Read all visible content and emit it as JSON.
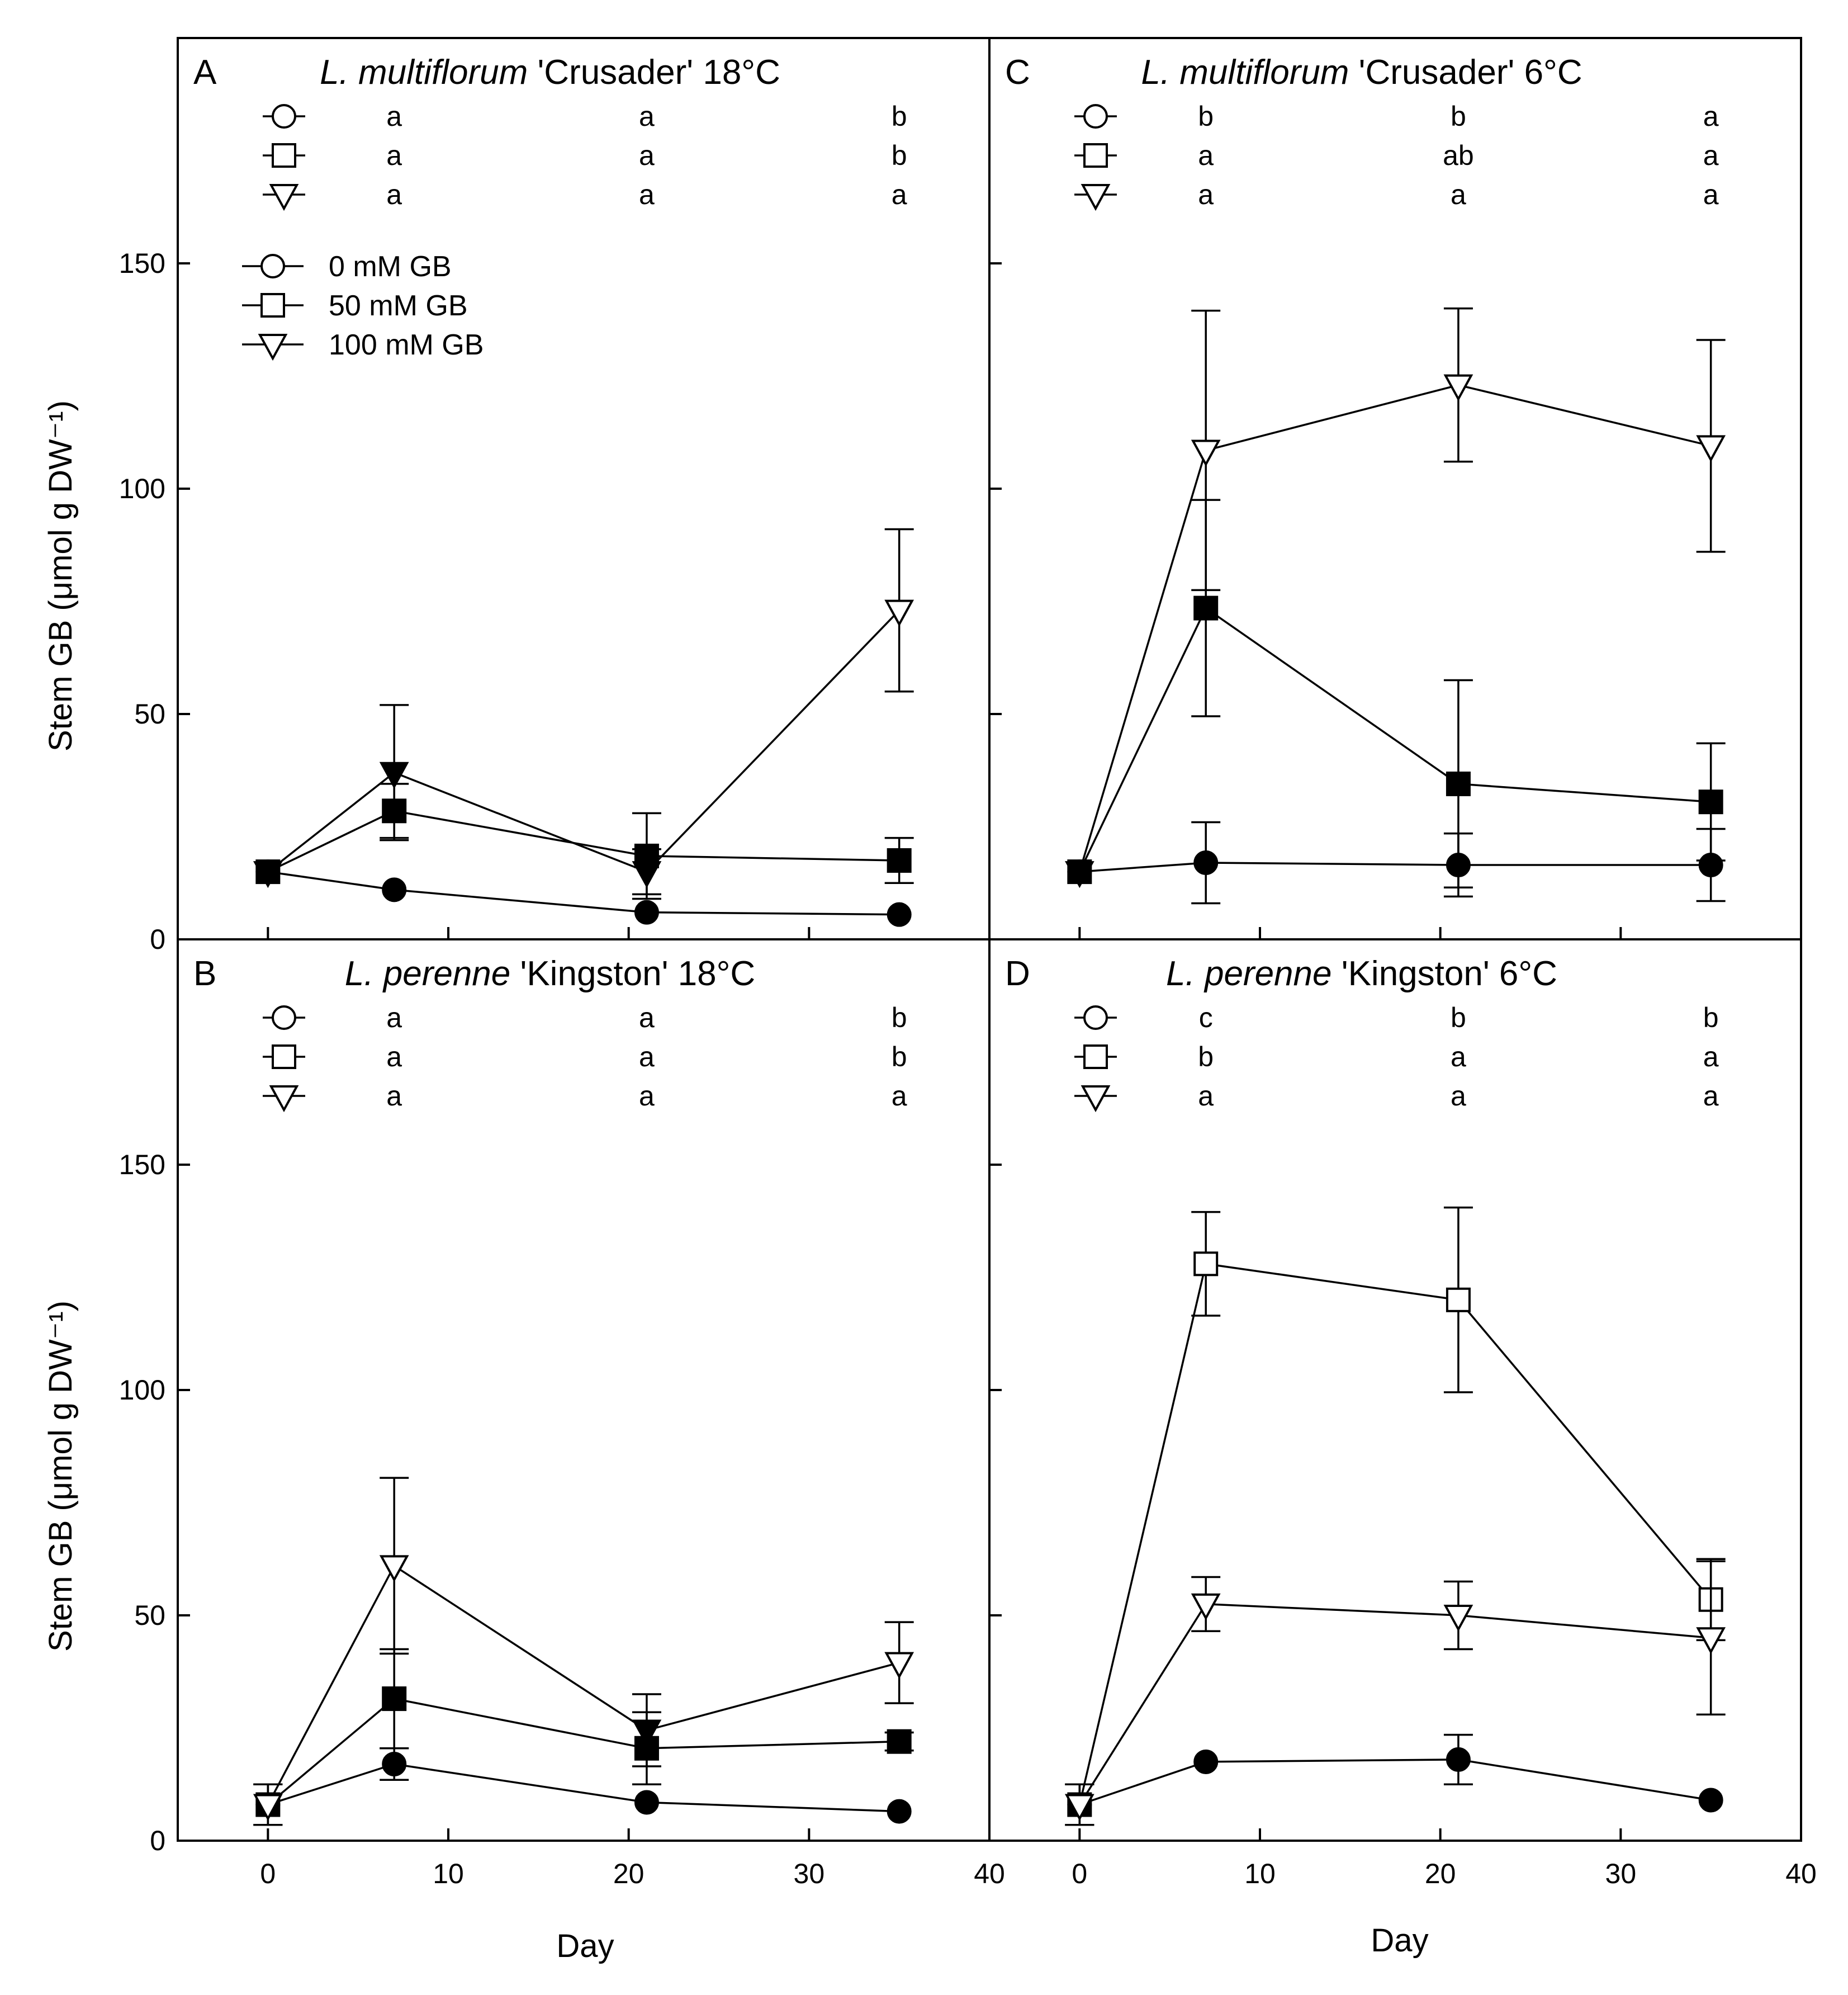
{
  "chart_data": {
    "type": "line",
    "shared": {
      "xlabel": "Day",
      "ylabel": "Stem GB (μmol g DW⁻¹)",
      "x_ticks": [
        0,
        10,
        20,
        30,
        40
      ],
      "y_ticks": [
        0,
        50,
        100,
        150
      ],
      "xlim": [
        -5,
        40
      ],
      "ylim": [
        0,
        200
      ],
      "legend": {
        "placement": "top-left",
        "entries": [
          {
            "series": "0 mM GB",
            "label": "0 mM GB",
            "marker": "circle"
          },
          {
            "series": "50 mM GB",
            "label": "50 mM GB",
            "marker": "square"
          },
          {
            "series": "100 mM GB",
            "label": "100 mM GB",
            "marker": "triangle-down"
          }
        ]
      },
      "significance_days": [
        7,
        21,
        35
      ]
    },
    "panels": [
      {
        "id": "A",
        "title_species": "L. multiflorum",
        "title_rest": " 'Crusader' 18°C",
        "x": [
          0,
          7,
          21,
          35
        ],
        "series": [
          {
            "name": "0 mM GB",
            "marker": "circle",
            "filled": [
              true,
              true,
              true,
              true
            ],
            "values": [
              15,
              11,
              6,
              5.5
            ],
            "err": [
              0,
              0,
              0,
              0
            ]
          },
          {
            "name": "50 mM GB",
            "marker": "square",
            "filled": [
              true,
              true,
              true,
              true
            ],
            "values": [
              15,
              28.5,
              18.5,
              17.5
            ],
            "err": [
              0,
              6,
              9.5,
              5
            ]
          },
          {
            "name": "100 mM GB",
            "marker": "triangle-down",
            "filled": [
              true,
              true,
              true,
              false
            ],
            "values": [
              15,
              37,
              15,
              73
            ],
            "err": [
              0,
              15,
              5,
              18
            ]
          }
        ],
        "significance": [
          [
            "a",
            "a",
            "b"
          ],
          [
            "a",
            "a",
            "b"
          ],
          [
            "a",
            "a",
            "a"
          ]
        ]
      },
      {
        "id": "C",
        "title_species": "L. multiflorum",
        "title_rest": " 'Crusader' 6°C",
        "x": [
          0,
          7,
          21,
          35
        ],
        "series": [
          {
            "name": "0 mM GB",
            "marker": "circle",
            "filled": [
              true,
              true,
              true,
              true
            ],
            "values": [
              15,
              17,
              16.5,
              16.5
            ],
            "err": [
              0,
              9,
              7,
              8
            ]
          },
          {
            "name": "50 mM GB",
            "marker": "square",
            "filled": [
              true,
              true,
              true,
              true
            ],
            "values": [
              15,
              73.5,
              34.5,
              30.5
            ],
            "err": [
              0,
              24,
              23,
              13
            ]
          },
          {
            "name": "100 mM GB",
            "marker": "triangle-down",
            "filled": [
              true,
              false,
              false,
              false
            ],
            "values": [
              15,
              108.5,
              123,
              109.5
            ],
            "err": [
              0,
              31,
              17,
              23.5
            ]
          }
        ],
        "significance": [
          [
            "b",
            "b",
            "a"
          ],
          [
            "a",
            "ab",
            "a"
          ],
          [
            "a",
            "a",
            "a"
          ]
        ]
      },
      {
        "id": "B",
        "title_species": "L. perenne",
        "title_rest": " 'Kingston' 18°C",
        "x": [
          0,
          7,
          21,
          35
        ],
        "series": [
          {
            "name": "0 mM GB",
            "marker": "circle",
            "filled": [
              true,
              true,
              true,
              true
            ],
            "values": [
              8,
              17,
              8.5,
              6.5
            ],
            "err": [
              4.5,
              3.5,
              0,
              0
            ]
          },
          {
            "name": "50 mM GB",
            "marker": "square",
            "filled": [
              true,
              true,
              true,
              true
            ],
            "values": [
              8,
              31.5,
              20.5,
              22
            ],
            "err": [
              4.5,
              11,
              8,
              2
            ]
          },
          {
            "name": "100 mM GB",
            "marker": "triangle-down",
            "filled": [
              false,
              false,
              true,
              false
            ],
            "values": [
              8,
              61,
              24.5,
              39.5
            ],
            "err": [
              4.5,
              19.5,
              8,
              9
            ]
          }
        ],
        "significance": [
          [
            "a",
            "a",
            "b"
          ],
          [
            "a",
            "a",
            "b"
          ],
          [
            "a",
            "a",
            "a"
          ]
        ]
      },
      {
        "id": "D",
        "title_species": "L. perenne",
        "title_rest": " 'Kingston' 6°C",
        "x": [
          0,
          7,
          21,
          35
        ],
        "series": [
          {
            "name": "0 mM GB",
            "marker": "circle",
            "filled": [
              true,
              true,
              true,
              true
            ],
            "values": [
              8,
              17.5,
              18,
              9
            ],
            "err": [
              4.5,
              0,
              5.5,
              0
            ]
          },
          {
            "name": "50 mM GB",
            "marker": "square",
            "filled": [
              true,
              false,
              false,
              false
            ],
            "values": [
              8,
              128,
              120,
              53.5
            ],
            "err": [
              4.5,
              11.5,
              20.5,
              9
            ]
          },
          {
            "name": "100 mM GB",
            "marker": "triangle-down",
            "filled": [
              false,
              false,
              false,
              false
            ],
            "values": [
              8,
              52.5,
              50,
              45
            ],
            "err": [
              4.5,
              6,
              7.5,
              17
            ]
          }
        ],
        "significance": [
          [
            "c",
            "b",
            "b"
          ],
          [
            "b",
            "a",
            "a"
          ],
          [
            "a",
            "a",
            "a"
          ]
        ]
      }
    ]
  }
}
